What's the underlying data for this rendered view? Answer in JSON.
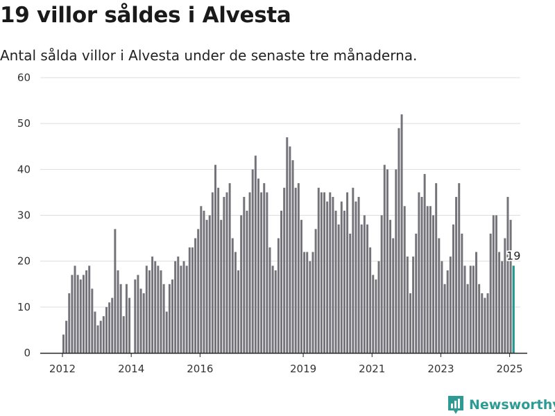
{
  "title": "19 villor såldes i Alvesta",
  "subtitle": "Antal sålda villor i Alvesta under de senaste tre månaderna.",
  "brand": {
    "name": "Newsworthy",
    "color": "#2e9a94"
  },
  "colors": {
    "bar": "#74737a",
    "highlight": "#1f9a8f",
    "grid": "#dddddd"
  },
  "chart_data": {
    "type": "bar",
    "title": "19 villor såldes i Alvesta",
    "subtitle": "Antal sålda villor i Alvesta under de senaste tre månaderna.",
    "xlabel": "",
    "ylabel": "",
    "ylim": [
      0,
      60
    ],
    "yticks": [
      0,
      10,
      20,
      30,
      40,
      50,
      60
    ],
    "xticks": [
      {
        "label": "2012",
        "month": "2012-01"
      },
      {
        "label": "2014",
        "month": "2014-01"
      },
      {
        "label": "2016",
        "month": "2016-01"
      },
      {
        "label": "2019",
        "month": "2019-01"
      },
      {
        "label": "2021",
        "month": "2021-01"
      },
      {
        "label": "2023",
        "month": "2023-01"
      },
      {
        "label": "2025",
        "month": "2025-01"
      }
    ],
    "grid": true,
    "start_month": "2012-01",
    "values": [
      4,
      7,
      13,
      17,
      19,
      17,
      16,
      17,
      18,
      19,
      14,
      9,
      6,
      7,
      8,
      10,
      11,
      12,
      27,
      18,
      15,
      8,
      15,
      12,
      0,
      16,
      17,
      14,
      13,
      19,
      18,
      21,
      20,
      19,
      18,
      15,
      9,
      15,
      16,
      20,
      21,
      19,
      20,
      19,
      23,
      23,
      25,
      27,
      32,
      31,
      29,
      30,
      35,
      41,
      36,
      29,
      34,
      35,
      37,
      25,
      22,
      18,
      30,
      34,
      31,
      35,
      40,
      43,
      38,
      35,
      37,
      35,
      23,
      19,
      18,
      25,
      31,
      36,
      47,
      45,
      42,
      36,
      37,
      29,
      22,
      22,
      20,
      22,
      27,
      36,
      35,
      35,
      33,
      35,
      34,
      31,
      28,
      33,
      31,
      35,
      26,
      36,
      33,
      34,
      28,
      30,
      28,
      23,
      17,
      16,
      20,
      30,
      41,
      40,
      29,
      25,
      40,
      49,
      52,
      32,
      21,
      13,
      21,
      26,
      35,
      34,
      39,
      32,
      32,
      30,
      37,
      25,
      20,
      15,
      18,
      21,
      28,
      34,
      37,
      26,
      19,
      15,
      19,
      19,
      22,
      15,
      13,
      12,
      13,
      26,
      30,
      30,
      22,
      20,
      25,
      34,
      29,
      19
    ],
    "highlight": {
      "month": "2025-02",
      "value": 19,
      "label": "19"
    }
  }
}
